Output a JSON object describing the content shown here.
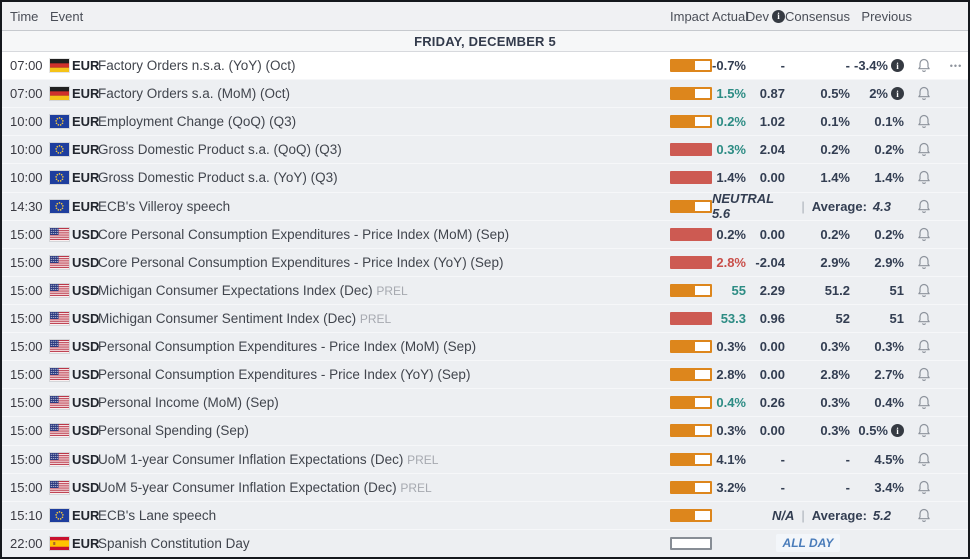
{
  "table": {
    "columns": {
      "time": "Time",
      "event": "Event",
      "impact": "Impact",
      "actual": "Actual",
      "dev": "Dev",
      "consensus": "Consensus",
      "previous": "Previous"
    },
    "day_header": "FRIDAY, DECEMBER 5"
  },
  "labels": {
    "prel": "PREL",
    "all_day": "ALL DAY",
    "average": "Average:",
    "more_options": "•••"
  },
  "colors": {
    "impact_medium_orange": "#dd861c",
    "impact_high_red": "#cd5a52",
    "actual_better_teal": "#2d8c84",
    "actual_worse_red": "#c94f4a",
    "number_dark": "#333e52",
    "all_day_blue": "#4a7cba"
  },
  "rows": [
    {
      "time": "07:00",
      "flag": "de",
      "currency": "EUR",
      "event": "Factory Orders n.s.a. (YoY) (Oct)",
      "impact": "medium",
      "type": "data",
      "actual": "-0.7%",
      "tone": "neutral",
      "dev": "-",
      "consensus": "-",
      "previous": "-3.4%",
      "previous_info": true,
      "bell": true,
      "more": true,
      "highlight": true
    },
    {
      "time": "07:00",
      "flag": "de",
      "currency": "EUR",
      "event": "Factory Orders s.a. (MoM) (Oct)",
      "impact": "medium",
      "type": "data",
      "actual": "1.5%",
      "tone": "pos",
      "dev": "0.87",
      "consensus": "0.5%",
      "previous": "2%",
      "previous_info": true,
      "bell": true
    },
    {
      "time": "10:00",
      "flag": "eu",
      "currency": "EUR",
      "event": "Employment Change (QoQ) (Q3)",
      "impact": "medium",
      "type": "data",
      "actual": "0.2%",
      "tone": "pos",
      "dev": "1.02",
      "consensus": "0.1%",
      "previous": "0.1%",
      "bell": true
    },
    {
      "time": "10:00",
      "flag": "eu",
      "currency": "EUR",
      "event": "Gross Domestic Product s.a. (QoQ) (Q3)",
      "impact": "high",
      "type": "data",
      "actual": "0.3%",
      "tone": "pos",
      "dev": "2.04",
      "consensus": "0.2%",
      "previous": "0.2%",
      "bell": true
    },
    {
      "time": "10:00",
      "flag": "eu",
      "currency": "EUR",
      "event": "Gross Domestic Product s.a. (YoY) (Q3)",
      "impact": "high",
      "type": "data",
      "actual": "1.4%",
      "tone": "neutral",
      "dev": "0.00",
      "consensus": "1.4%",
      "previous": "1.4%",
      "bell": true
    },
    {
      "time": "14:30",
      "flag": "eu",
      "currency": "EUR",
      "event": "ECB's Villeroy speech",
      "impact": "medium",
      "type": "speech",
      "status": "NEUTRAL 5.6",
      "average": "4.3",
      "bell": true
    },
    {
      "time": "15:00",
      "flag": "us",
      "currency": "USD",
      "event": "Core Personal Consumption Expenditures - Price Index (MoM) (Sep)",
      "impact": "high",
      "type": "data",
      "actual": "0.2%",
      "tone": "neutral",
      "dev": "0.00",
      "consensus": "0.2%",
      "previous": "0.2%",
      "bell": true
    },
    {
      "time": "15:00",
      "flag": "us",
      "currency": "USD",
      "event": "Core Personal Consumption Expenditures - Price Index (YoY) (Sep)",
      "impact": "high",
      "type": "data",
      "actual": "2.8%",
      "tone": "neg",
      "dev": "-2.04",
      "consensus": "2.9%",
      "previous": "2.9%",
      "bell": true
    },
    {
      "time": "15:00",
      "flag": "us",
      "currency": "USD",
      "event": "Michigan Consumer Expectations Index (Dec)",
      "prel": true,
      "impact": "medium",
      "type": "data",
      "actual": "55",
      "tone": "pos",
      "dev": "2.29",
      "consensus": "51.2",
      "previous": "51",
      "bell": true
    },
    {
      "time": "15:00",
      "flag": "us",
      "currency": "USD",
      "event": "Michigan Consumer Sentiment Index (Dec)",
      "prel": true,
      "impact": "high",
      "type": "data",
      "actual": "53.3",
      "tone": "pos",
      "dev": "0.96",
      "consensus": "52",
      "previous": "51",
      "bell": true
    },
    {
      "time": "15:00",
      "flag": "us",
      "currency": "USD",
      "event": "Personal Consumption Expenditures - Price Index (MoM) (Sep)",
      "impact": "medium",
      "type": "data",
      "actual": "0.3%",
      "tone": "neutral",
      "dev": "0.00",
      "consensus": "0.3%",
      "previous": "0.3%",
      "bell": true
    },
    {
      "time": "15:00",
      "flag": "us",
      "currency": "USD",
      "event": "Personal Consumption Expenditures - Price Index (YoY) (Sep)",
      "impact": "medium",
      "type": "data",
      "actual": "2.8%",
      "tone": "neutral",
      "dev": "0.00",
      "consensus": "2.8%",
      "previous": "2.7%",
      "bell": true
    },
    {
      "time": "15:00",
      "flag": "us",
      "currency": "USD",
      "event": "Personal Income (MoM) (Sep)",
      "impact": "medium",
      "type": "data",
      "actual": "0.4%",
      "tone": "pos",
      "dev": "0.26",
      "consensus": "0.3%",
      "previous": "0.4%",
      "bell": true
    },
    {
      "time": "15:00",
      "flag": "us",
      "currency": "USD",
      "event": "Personal Spending (Sep)",
      "impact": "medium",
      "type": "data",
      "actual": "0.3%",
      "tone": "neutral",
      "dev": "0.00",
      "consensus": "0.3%",
      "previous": "0.5%",
      "previous_info": true,
      "bell": true
    },
    {
      "time": "15:00",
      "flag": "us",
      "currency": "USD",
      "event": "UoM 1-year Consumer Inflation Expectations (Dec)",
      "prel": true,
      "impact": "medium",
      "type": "data",
      "actual": "4.1%",
      "tone": "neutral",
      "dev": "-",
      "consensus": "-",
      "previous": "4.5%",
      "bell": true
    },
    {
      "time": "15:00",
      "flag": "us",
      "currency": "USD",
      "event": "UoM 5-year Consumer Inflation Expectation (Dec)",
      "prel": true,
      "impact": "medium",
      "type": "data",
      "actual": "3.2%",
      "tone": "neutral",
      "dev": "-",
      "consensus": "-",
      "previous": "3.4%",
      "bell": true
    },
    {
      "time": "15:10",
      "flag": "eu",
      "currency": "EUR",
      "event": "ECB's Lane speech",
      "impact": "medium",
      "type": "speech",
      "status": "N/A",
      "average": "5.2",
      "bell": true
    },
    {
      "time": "22:00",
      "flag": "es",
      "currency": "EUR",
      "event": "Spanish Constitution Day",
      "impact": "none",
      "type": "allday",
      "bell": false
    }
  ]
}
